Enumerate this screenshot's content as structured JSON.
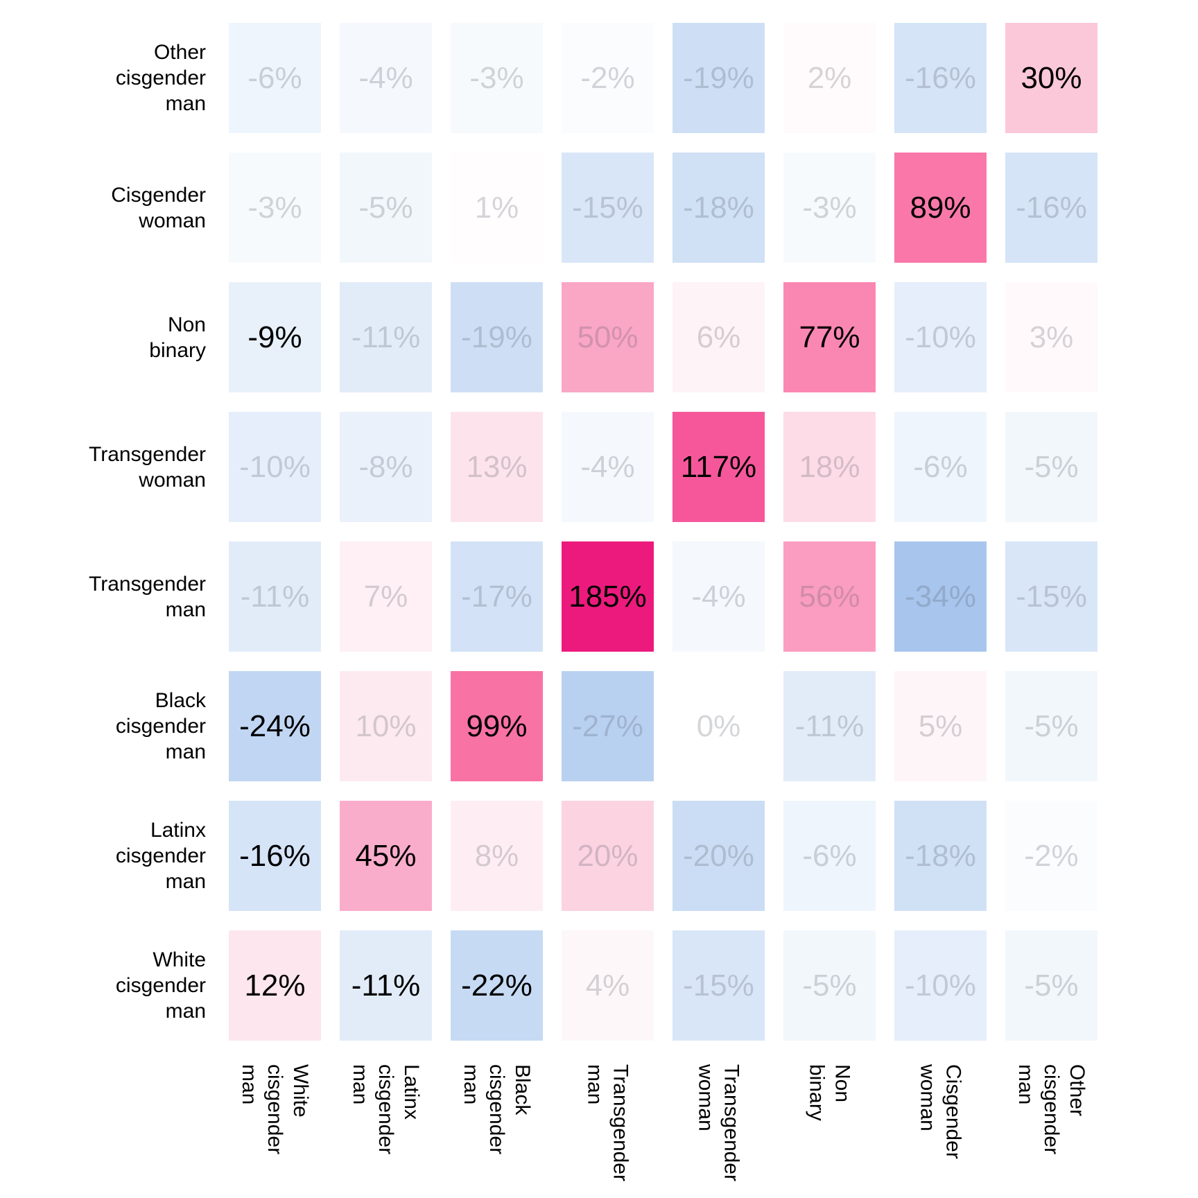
{
  "chart_data": {
    "type": "heatmap",
    "title": "",
    "xlabel": "",
    "ylabel": "",
    "grid": "off",
    "legend": "none",
    "value_suffix": "%",
    "x_categories": [
      "White\ncisgender\nman",
      "Latinx\ncisgender\nman",
      "Black\ncisgender\nman",
      "Transgender\nman",
      "Transgender\nwoman",
      "Non\nbinary",
      "Cisgender\nwoman",
      "Other\ncisgender\nman"
    ],
    "y_categories_top_to_bottom": [
      "Other\ncisgender\nman",
      "Cisgender\nwoman",
      "Non\nbinary",
      "Transgender\nwoman",
      "Transgender\nman",
      "Black\ncisgender\nman",
      "Latinx\ncisgender\nman",
      "White\ncisgender\nman"
    ],
    "values_percent": [
      [
        -6,
        -4,
        -3,
        -2,
        -19,
        2,
        -16,
        30
      ],
      [
        -3,
        -5,
        1,
        -15,
        -18,
        -3,
        89,
        -16
      ],
      [
        -9,
        -11,
        -19,
        50,
        6,
        77,
        -10,
        3
      ],
      [
        -10,
        -8,
        13,
        -4,
        117,
        18,
        -6,
        -5
      ],
      [
        -11,
        7,
        -17,
        185,
        -4,
        56,
        -34,
        -15
      ],
      [
        -24,
        10,
        99,
        -27,
        0,
        -11,
        5,
        -5
      ],
      [
        -16,
        45,
        8,
        20,
        -20,
        -6,
        -18,
        -2
      ],
      [
        12,
        -11,
        -22,
        4,
        -15,
        -5,
        -10,
        -5
      ]
    ],
    "muted_text": [
      [
        1,
        1,
        1,
        1,
        1,
        1,
        1,
        0
      ],
      [
        1,
        1,
        1,
        1,
        1,
        1,
        0,
        1
      ],
      [
        0,
        1,
        1,
        1,
        1,
        0,
        1,
        1
      ],
      [
        1,
        1,
        1,
        1,
        0,
        1,
        1,
        1
      ],
      [
        1,
        1,
        1,
        0,
        1,
        1,
        1,
        1
      ],
      [
        0,
        1,
        0,
        1,
        1,
        1,
        1,
        1
      ],
      [
        0,
        0,
        1,
        1,
        1,
        1,
        1,
        1
      ],
      [
        0,
        0,
        0,
        1,
        1,
        1,
        1,
        1
      ]
    ],
    "cell_colors": [
      [
        "#EFF5FC",
        "#F5F8FD",
        "#F7FAFD",
        "#FAFCFE",
        "#CEDFF5",
        "#FFFBFC",
        "#D5E4F7",
        "#FBC8D9"
      ],
      [
        "#F7FAFD",
        "#F2F7FC",
        "#FFFDFE",
        "#D8E6F7",
        "#D0E0F5",
        "#F7FAFD",
        "#F978A9",
        "#D5E4F7"
      ],
      [
        "#E8F0FA",
        "#E2ECF9",
        "#CEDFF5",
        "#FAA6C5",
        "#FEF3F6",
        "#FA87B2",
        "#E5EEFA",
        "#FFF9FB"
      ],
      [
        "#E5EEFA",
        "#EAF1FB",
        "#FDE4EC",
        "#F5F8FD",
        "#F6579B",
        "#FDDCE7",
        "#EFF5FC",
        "#F2F7FC"
      ],
      [
        "#E2ECF9",
        "#FEF0F5",
        "#D3E2F6",
        "#EC1A7D",
        "#F5F8FD",
        "#FA9DC0",
        "#A7C5ED",
        "#D8E6F7"
      ],
      [
        "#C1D6F2",
        "#FDEAF0",
        "#F872A3",
        "#B9D1F1",
        "#FFFFFF",
        "#E2ECF9",
        "#FEF5F8",
        "#F2F7FC"
      ],
      [
        "#D5E4F7",
        "#FAADCA",
        "#FEEEF3",
        "#FCD3E1",
        "#CBDDF4",
        "#EFF5FC",
        "#D0E0F5",
        "#FAFCFE"
      ],
      [
        "#FDE6ED",
        "#E2ECF9",
        "#C6DAF3",
        "#FEF7F9",
        "#D8E6F7",
        "#F2F7FC",
        "#E5EEFA",
        "#F2F7FC"
      ]
    ],
    "colors": {
      "negative_extreme": "#A7C5ED",
      "zero": "#FFFFFF",
      "positive_extreme": "#EC1A7D",
      "emphasized_text": "#000000",
      "muted_text": "#C9CDD4"
    },
    "value_range_shown": [
      -34,
      185
    ]
  }
}
